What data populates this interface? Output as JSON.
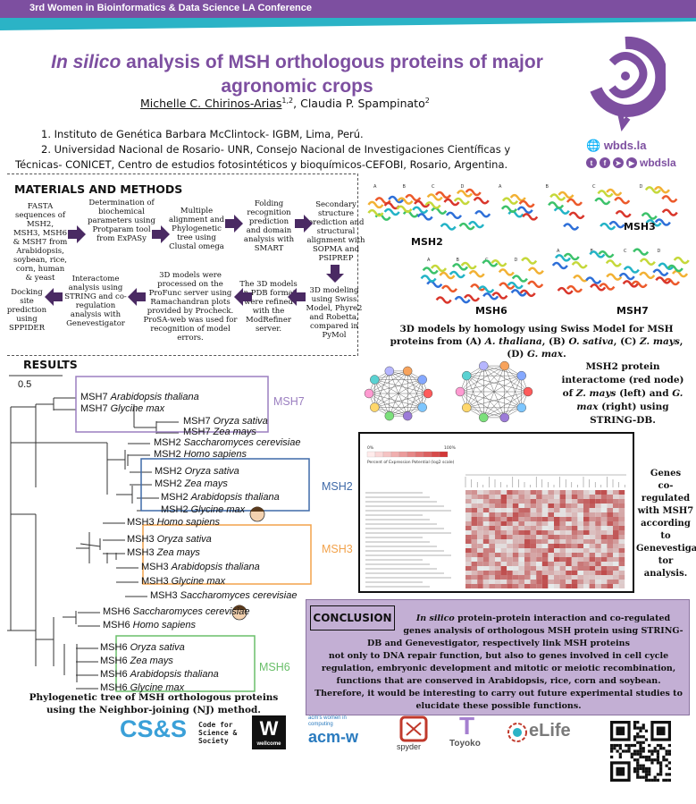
{
  "conference": "3rd Women in Bioinformatics & Data Science LA Conference",
  "title": {
    "italic": "In silico",
    "rest": "analysis of MSH orthologous proteins of major agronomic crops"
  },
  "authors": {
    "first": "Michelle C. Chirinos-Arias",
    "first_sup": "1,2",
    "sep": ",  ",
    "second": "Claudia P. Spampinato",
    "second_sup": "2"
  },
  "affiliations": [
    "1. Instituto de Genética Barbara McClintock- IGBM, Lima, Perú.",
    "2. Universidad Nacional de Rosario- UNR, Consejo Nacional de Investigaciones Científicas y",
    "Técnicas- CONICET, Centro de estudios fotosintéticos y bioquímicos-CEFOBI, Rosario, Argentina."
  ],
  "wbds": {
    "website": "wbds.la",
    "handle": "wbdsla"
  },
  "colors": {
    "purple": "#7d4fa0",
    "teal": "#2bb3c6",
    "msh7": "#9b7fc0",
    "msh2": "#3f6aa8",
    "msh3": "#f2a24b",
    "msh6": "#6abf6a",
    "conclusion_bg": "#c3afd4"
  },
  "materials": {
    "heading": "MATERIALS AND METHODS",
    "row1": [
      "FASTA sequences of MSH2, MSH3, MSH6 & MSH7 from Arabidopsis, soybean, rice, corn, human & yeast",
      "Determination of biochemical parameters using Protparam tool from ExPASy",
      "Multiple alignment and Phylogenetic tree using Clustal omega",
      "Folding recognition prediction and domain analysis with SMART",
      "Secondary structure prediction and structural alignment with SOPMA and PSIPREP"
    ],
    "row2": [
      "Docking site prediction using SPPIDER",
      "Interactome analysis using STRING and co-regulation analysis with Genevestigator",
      "3D models were processed on the ProFunc server using Ramachandran plots provided by Procheck. ProSA-web was used for recognition of model errors.",
      "The 3D models in PDB format were refined with the ModRefiner server.",
      "3D modeling using Swiss Model, Phyre2 and Robetta, compared in PyMol"
    ]
  },
  "structures": {
    "labels": [
      "MSH2",
      "MSH3",
      "MSH6",
      "MSH7"
    ],
    "panel_letters": [
      "A",
      "B",
      "C",
      "D"
    ],
    "caption_pre": "3D models by homology using Swiss Model for MSH proteins from (A) ",
    "sp_a": "A. thaliana",
    "sep_b": ", (B) ",
    "sp_b": "O. sativa",
    "sep_c": ", (C) ",
    "sp_c": "Z. mays",
    "sep_d": ", (D) ",
    "sp_d": "G. max",
    "end": "."
  },
  "results": {
    "heading": "RESULTS",
    "scale": "0.5",
    "tree": [
      {
        "g": "MSH7",
        "sp": "Arabidopsis thaliana"
      },
      {
        "g": "MSH7",
        "sp": "Glycine max"
      },
      {
        "g": "MSH7",
        "sp": "Oryza sativa"
      },
      {
        "g": "MSH7",
        "sp": "Zea mays"
      },
      {
        "g": "MSH2",
        "sp": "Saccharomyces cerevisiae"
      },
      {
        "g": "MSH2",
        "sp": "Homo sapiens"
      },
      {
        "g": "MSH2",
        "sp": "Oryza sativa"
      },
      {
        "g": "MSH2",
        "sp": "Zea mays"
      },
      {
        "g": "MSH2",
        "sp": "Arabidopsis thaliana"
      },
      {
        "g": "MSH2",
        "sp": "Glycine max"
      },
      {
        "g": "MSH3",
        "sp": "Homo sapiens"
      },
      {
        "g": "MSH3",
        "sp": "Oryza sativa"
      },
      {
        "g": "MSH3",
        "sp": "Zea mays"
      },
      {
        "g": "MSH3",
        "sp": "Arabidopsis thaliana"
      },
      {
        "g": "MSH3",
        "sp": "Glycine max"
      },
      {
        "g": "MSH3",
        "sp": "Saccharomyces cerevisiae"
      },
      {
        "g": "MSH6",
        "sp": "Saccharomyces cerevisiae"
      },
      {
        "g": "MSH6",
        "sp": "Homo sapiens"
      },
      {
        "g": "MSH6",
        "sp": "Oryza sativa"
      },
      {
        "g": "MSH6",
        "sp": "Zea mays"
      },
      {
        "g": "MSH6",
        "sp": "Arabidopsis thaliana"
      },
      {
        "g": "MSH6",
        "sp": "Glycine max"
      }
    ],
    "clades": [
      "MSH7",
      "MSH2",
      "MSH3",
      "MSH6"
    ],
    "tree_caption": "Phylogenetic tree of MSH orthologous proteins using the Neighbor-joining (NJ) method.",
    "interactome_caption": {
      "l1": "MSH2 protein",
      "l2": "interactome (red node)",
      "l3a": "of ",
      "sp1": "Z. mays",
      "l3b": " (left) and ",
      "sp2": "G.",
      "sp2b": "max",
      "l4": " (right) using",
      "l5": "STRING-DB."
    },
    "heatmap_caption": [
      "Genes",
      "co-regulated",
      "with MSH7",
      "according to",
      "Genevestiga-",
      "tor analysis."
    ],
    "heatmap_scale_label": "Percent of Expression Potential (log2 scale)",
    "heatmap_scale_min": "0%",
    "heatmap_scale_max": "100%"
  },
  "conclusion": {
    "heading": "CONCLUSION",
    "lead_italic": "In silico",
    "lines": [
      " protein-protein interaction  and co-regulated",
      "genes analysis of orthologous MSH protein using STRING-",
      "DB and Genevestigator, respectively link MSH proteins",
      "not only to DNA repair function, but also to genes involved in cell cycle",
      "regulation, embryonic development and mitotic or meiotic recombination,",
      "functions that are conserved in Arabidopsis, rice, corn and soybean.",
      "Therefore, it would be interesting to carry out future experimental studies to",
      "elucidate these possible functions."
    ]
  },
  "sponsors": {
    "css": "CS&S",
    "css_text": [
      "Code for",
      "Science &",
      "Society"
    ],
    "wellcome": "W",
    "wellcome_text": "wellcome",
    "acm_small": [
      "acm's women in",
      "computing"
    ],
    "acm": "acm-w",
    "spyder": "spyder",
    "toyoko": "Toyoko",
    "elife": "eLife"
  }
}
